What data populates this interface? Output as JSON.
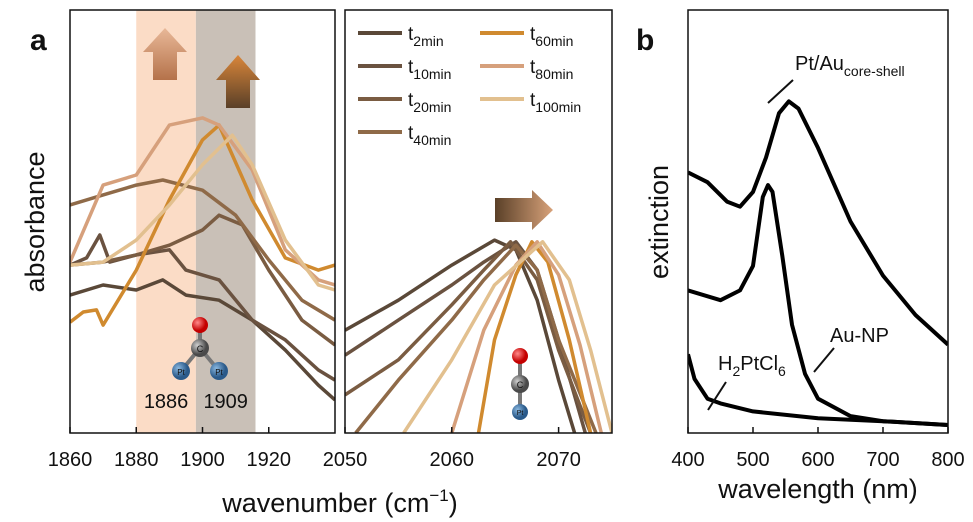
{
  "chart_data": [
    {
      "type": "line",
      "panel_label": "a",
      "y_label": "absorbance",
      "x_label": "wavenumber (cm",
      "x_label_sup": "−1",
      "x_label_end": ")",
      "xlim": [
        1860,
        1940
      ],
      "xticks": [
        1860,
        1880,
        1900,
        1920
      ],
      "ylim": [
        0,
        100
      ],
      "bands": [
        {
          "from": 1880,
          "to": 1898,
          "color": "#fbdcc6",
          "label": "1886"
        },
        {
          "from": 1898,
          "to": 1916,
          "color": "#c9c0b7",
          "label": "1909"
        }
      ],
      "molecule_labels": [
        "C",
        "Pt",
        "Pt"
      ],
      "series": [
        {
          "color": "#5a4838",
          "x": [
            1860,
            1870,
            1880,
            1888,
            1895,
            1905,
            1915,
            1925,
            1935,
            1940
          ],
          "values": [
            32.6,
            35.0,
            33.8,
            36.2,
            32.6,
            31.4,
            26.7,
            19.6,
            11.3,
            7.8
          ]
        },
        {
          "color": "#6a5240",
          "x": [
            1860,
            1865,
            1869,
            1872,
            1880,
            1890,
            1895,
            1905,
            1915,
            1925,
            1935,
            1940
          ],
          "values": [
            39.7,
            41.4,
            46.8,
            40.4,
            42.1,
            43.3,
            38.5,
            36.2,
            26.7,
            22.0,
            14.9,
            12.5
          ]
        },
        {
          "color": "#7a5c42",
          "x": [
            1860,
            1870,
            1880,
            1890,
            1900,
            1905,
            1912,
            1920,
            1930,
            1940
          ],
          "values": [
            39.7,
            40.4,
            42.1,
            44.4,
            48.0,
            51.5,
            49.2,
            38.5,
            26.7,
            20.8
          ]
        },
        {
          "color": "#8f6a48",
          "x": [
            1860,
            1870,
            1880,
            1888,
            1900,
            1910,
            1920,
            1930,
            1940
          ],
          "values": [
            53.9,
            56.3,
            58.6,
            59.8,
            57.4,
            51.5,
            40.9,
            31.4,
            26.7
          ]
        },
        {
          "color": "#d08a2f",
          "x": [
            1860,
            1864,
            1868,
            1870,
            1880,
            1890,
            1900,
            1905,
            1915,
            1925,
            1935,
            1940
          ],
          "values": [
            26.2,
            28.6,
            29.1,
            25.5,
            38.5,
            55.1,
            69.3,
            72.8,
            55.1,
            41.4,
            38.5,
            39.7
          ]
        },
        {
          "color": "#d6a07c",
          "x": [
            1860,
            1870,
            1880,
            1890,
            1900,
            1905,
            1915,
            1925,
            1935,
            1940
          ],
          "values": [
            40.4,
            58.6,
            61.0,
            72.8,
            74.5,
            72.8,
            62.2,
            43.3,
            36.2,
            35.0
          ]
        },
        {
          "color": "#e2c08f",
          "x": [
            1860,
            1870,
            1880,
            1890,
            1900,
            1909,
            1915,
            1925,
            1935,
            1940
          ],
          "values": [
            39.7,
            40.4,
            45.6,
            53.9,
            63.4,
            70.4,
            63.4,
            45.6,
            35.0,
            33.8
          ]
        }
      ]
    },
    {
      "type": "line",
      "xlim": [
        2050,
        2075
      ],
      "xticks": [
        2050,
        2060,
        2070
      ],
      "ylim": [
        0,
        100
      ],
      "molecule_labels": [
        "C",
        "Pt"
      ],
      "series": [
        {
          "name": "t",
          "name_sub": "2min",
          "color": "#5a4838",
          "x": [
            2050,
            2055,
            2060,
            2064,
            2066,
            2068,
            2070,
            2071.5
          ],
          "values": [
            24.3,
            31.4,
            39.7,
            45.6,
            43.3,
            31.4,
            12.5,
            0
          ]
        },
        {
          "name": "t",
          "name_sub": "10min",
          "color": "#6a5240",
          "x": [
            2050,
            2055,
            2060,
            2063,
            2066,
            2068,
            2070,
            2072.5
          ],
          "values": [
            18.4,
            26.7,
            35.0,
            40.4,
            45.2,
            38.5,
            22.0,
            0
          ]
        },
        {
          "name": "t",
          "name_sub": "20min",
          "color": "#7a5c42",
          "x": [
            2050,
            2055,
            2060,
            2063,
            2065.5,
            2068,
            2070,
            2073
          ],
          "values": [
            9.0,
            17.3,
            30.3,
            38.5,
            45.2,
            36.2,
            19.6,
            0
          ]
        },
        {
          "name": "t",
          "name_sub": "40min",
          "color": "#8f6a48",
          "x": [
            2051,
            2055,
            2060,
            2063,
            2066,
            2068,
            2070,
            2073.5
          ],
          "values": [
            0,
            12.5,
            26.7,
            36.2,
            44.4,
            38.5,
            22.0,
            0
          ]
        },
        {
          "name": "t",
          "name_sub": "60min",
          "color": "#d08a2f",
          "x": [
            2062.5,
            2064,
            2066,
            2067.5,
            2069,
            2071,
            2073
          ],
          "values": [
            0,
            22.0,
            37.4,
            45.2,
            40.4,
            22.0,
            0
          ]
        },
        {
          "name": "t",
          "name_sub": "80min",
          "color": "#d6a07c",
          "x": [
            2060,
            2063,
            2066,
            2068,
            2070,
            2072,
            2074
          ],
          "values": [
            0,
            24.3,
            39.7,
            45.2,
            37.4,
            20.8,
            0
          ]
        },
        {
          "name": "t",
          "name_sub": "100min",
          "color": "#e2c08f",
          "x": [
            2055.5,
            2060,
            2064,
            2068.5,
            2071,
            2073,
            2075
          ],
          "values": [
            0,
            17.3,
            35.0,
            45.2,
            36.2,
            19.6,
            0
          ]
        }
      ]
    },
    {
      "type": "line",
      "panel_label": "b",
      "x_label": "wavelength (nm)",
      "y_label": "extinction",
      "xlim": [
        400,
        800
      ],
      "xticks": [
        400,
        500,
        600,
        700,
        800
      ],
      "ylim": [
        0,
        100
      ],
      "annotations": [
        {
          "parts": [
            "Pt/Au",
            "core-shell"
          ]
        },
        {
          "parts": [
            "Au-NP"
          ]
        },
        {
          "parts": [
            "H",
            "2",
            "PtCl",
            "6"
          ]
        }
      ],
      "series": [
        {
          "color": "#000000",
          "x": [
            400,
            430,
            460,
            480,
            500,
            520,
            540,
            555,
            570,
            600,
            650,
            700,
            750,
            800
          ],
          "values": [
            61.6,
            59.3,
            54.7,
            53.5,
            57.0,
            65.1,
            75.6,
            78.4,
            76.7,
            67.4,
            50.0,
            37.2,
            27.9,
            20.9
          ]
        },
        {
          "color": "#000000",
          "x": [
            400,
            450,
            480,
            500,
            515,
            523,
            530,
            545,
            560,
            580,
            600,
            650,
            700,
            800
          ],
          "values": [
            33.7,
            31.4,
            33.7,
            39.5,
            55.8,
            58.6,
            57.0,
            41.9,
            25.6,
            14.0,
            8.1,
            4.0,
            2.8,
            1.9
          ]
        },
        {
          "color": "#000000",
          "x": [
            400,
            410,
            430,
            450,
            500,
            600,
            700,
            800
          ],
          "values": [
            18.6,
            12.8,
            8.1,
            7.0,
            5.1,
            3.5,
            2.8,
            1.9
          ]
        }
      ]
    }
  ]
}
